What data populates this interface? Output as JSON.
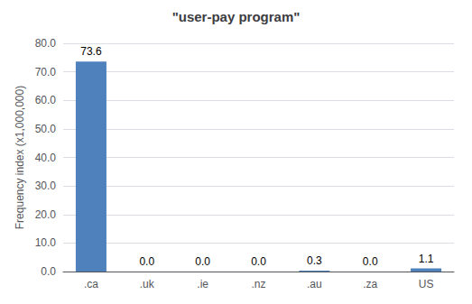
{
  "chart_data": {
    "type": "bar",
    "title": "\"user-pay program\"",
    "categories": [
      ".ca",
      ".uk",
      ".ie",
      ".nz",
      ".au",
      ".za",
      "US"
    ],
    "values": [
      73.6,
      0.0,
      0.0,
      0.0,
      0.3,
      0.0,
      1.1
    ],
    "value_labels": [
      "73.6",
      "0.0",
      "0.0",
      "0.0",
      "0.3",
      "0.0",
      "1.1"
    ],
    "data_labels": true,
    "color": "#4f81bd",
    "ylabel": "Frequency index (x1,000,000)",
    "ylim": [
      0,
      80
    ],
    "yticks": [
      {
        "value": 0,
        "label": "0.0"
      },
      {
        "value": 10,
        "label": "10.0"
      },
      {
        "value": 20,
        "label": "20.0"
      },
      {
        "value": 30,
        "label": "30.0"
      },
      {
        "value": 40,
        "label": "40.0"
      },
      {
        "value": 50,
        "label": "50.0"
      },
      {
        "value": 60,
        "label": "60.0"
      },
      {
        "value": 70,
        "label": "70.0"
      },
      {
        "value": 80,
        "label": "80.0"
      }
    ],
    "grid": true
  }
}
